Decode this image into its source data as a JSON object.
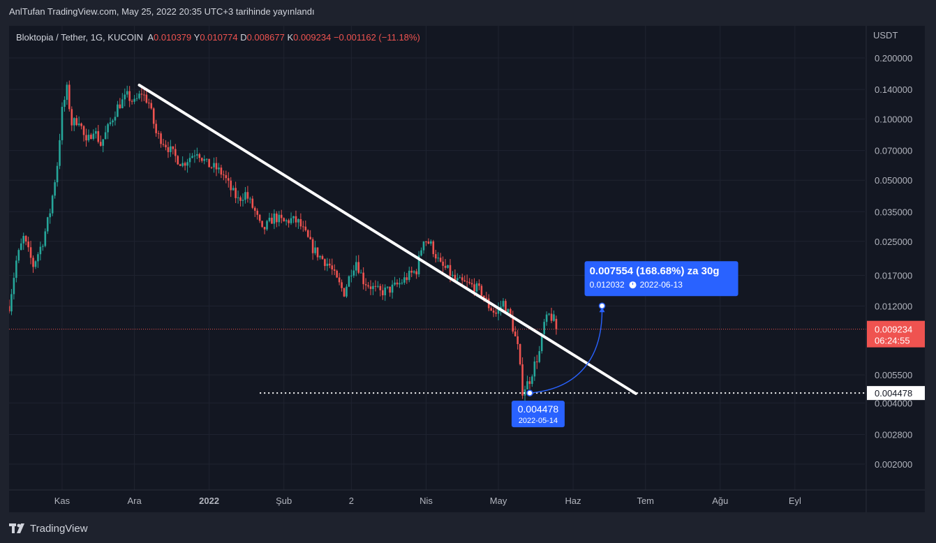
{
  "header": {
    "attribution": "AnlTufan TradingView.com, May 25, 2022 20:35 UTC+3 tarihinde yayınlandı"
  },
  "legend": {
    "symbol": "Bloktopia / Tether, 1G, KUCOIN",
    "open_label": "A",
    "open": "0.010379",
    "high_label": "Y",
    "high": "0.010774",
    "low_label": "D",
    "low": "0.008677",
    "close_label": "K",
    "close": "0.009234",
    "change": "−0.001162 (−11.18%)"
  },
  "footer": {
    "brand": "TradingView"
  },
  "colors": {
    "up": "#26a69a",
    "down": "#ef5350",
    "accent": "#2962ff",
    "background": "#131722",
    "page": "#1e222d"
  },
  "chart_data": {
    "type": "candlestick",
    "scale": "log",
    "currency_label": "USDT",
    "y_ticks": [
      "0.200000",
      "0.140000",
      "0.100000",
      "0.070000",
      "0.050000",
      "0.035000",
      "0.025000",
      "0.017000",
      "0.012000",
      "0.005500",
      "0.004000",
      "0.002800",
      "0.002000"
    ],
    "y_tick_values": [
      0.2,
      0.14,
      0.1,
      0.07,
      0.05,
      0.035,
      0.025,
      0.017,
      0.012,
      0.0055,
      0.004,
      0.0028,
      0.002
    ],
    "x_ticks": [
      "Kas",
      "Ara",
      "2022",
      "Şub",
      "2",
      "Nis",
      "May",
      "Haz",
      "Tem",
      "Ağu",
      "Eyl"
    ],
    "x_tick_dates": [
      "2021-11-01",
      "2021-12-01",
      "2022-01-01",
      "2022-02-01",
      "2022-03-01",
      "2022-04-01",
      "2022-05-01",
      "2022-06-01",
      "2022-07-01",
      "2022-08-01",
      "2022-09-01"
    ],
    "x_range": [
      "2021-10-10",
      "2022-09-30"
    ],
    "first_date": "2021-10-10",
    "close_path": [
      [
        "2021-10-10",
        0.012
      ],
      [
        "2021-10-13",
        0.02
      ],
      [
        "2021-10-16",
        0.026
      ],
      [
        "2021-10-20",
        0.019
      ],
      [
        "2021-10-24",
        0.025
      ],
      [
        "2021-10-27",
        0.035
      ],
      [
        "2021-10-30",
        0.06
      ],
      [
        "2021-11-01",
        0.11
      ],
      [
        "2021-11-03",
        0.14
      ],
      [
        "2021-11-05",
        0.095
      ],
      [
        "2021-11-08",
        0.1
      ],
      [
        "2021-11-11",
        0.075
      ],
      [
        "2021-11-14",
        0.09
      ],
      [
        "2021-11-17",
        0.075
      ],
      [
        "2021-11-20",
        0.09
      ],
      [
        "2021-11-24",
        0.115
      ],
      [
        "2021-11-28",
        0.13
      ],
      [
        "2021-12-01",
        0.12
      ],
      [
        "2021-12-04",
        0.135
      ],
      [
        "2021-12-07",
        0.12
      ],
      [
        "2021-12-10",
        0.085
      ],
      [
        "2021-12-14",
        0.075
      ],
      [
        "2021-12-18",
        0.065
      ],
      [
        "2021-12-21",
        0.06
      ],
      [
        "2021-12-24",
        0.065
      ],
      [
        "2021-12-27",
        0.07
      ],
      [
        "2021-12-31",
        0.06
      ],
      [
        "2022-01-04",
        0.057
      ],
      [
        "2022-01-07",
        0.053
      ],
      [
        "2022-01-10",
        0.045
      ],
      [
        "2022-01-13",
        0.04
      ],
      [
        "2022-01-16",
        0.043
      ],
      [
        "2022-01-20",
        0.035
      ],
      [
        "2022-01-23",
        0.028
      ],
      [
        "2022-01-25",
        0.03
      ],
      [
        "2022-01-28",
        0.033
      ],
      [
        "2022-02-01",
        0.031
      ],
      [
        "2022-02-04",
        0.032
      ],
      [
        "2022-02-07",
        0.031
      ],
      [
        "2022-02-10",
        0.027
      ],
      [
        "2022-02-13",
        0.023
      ],
      [
        "2022-02-16",
        0.021
      ],
      [
        "2022-02-20",
        0.019
      ],
      [
        "2022-02-23",
        0.016
      ],
      [
        "2022-02-26",
        0.014
      ],
      [
        "2022-03-01",
        0.018
      ],
      [
        "2022-03-03",
        0.02
      ],
      [
        "2022-03-06",
        0.016
      ],
      [
        "2022-03-09",
        0.015
      ],
      [
        "2022-03-13",
        0.014
      ],
      [
        "2022-03-17",
        0.0145
      ],
      [
        "2022-03-21",
        0.0155
      ],
      [
        "2022-03-25",
        0.017
      ],
      [
        "2022-03-28",
        0.018
      ],
      [
        "2022-03-31",
        0.026
      ],
      [
        "2022-04-03",
        0.024
      ],
      [
        "2022-04-07",
        0.019
      ],
      [
        "2022-04-10",
        0.018
      ],
      [
        "2022-04-13",
        0.016
      ],
      [
        "2022-04-17",
        0.0155
      ],
      [
        "2022-04-21",
        0.015
      ],
      [
        "2022-04-24",
        0.014
      ],
      [
        "2022-04-27",
        0.012
      ],
      [
        "2022-04-30",
        0.011
      ],
      [
        "2022-05-03",
        0.0125
      ],
      [
        "2022-05-06",
        0.0105
      ],
      [
        "2022-05-09",
        0.0075
      ],
      [
        "2022-05-11",
        0.0046
      ],
      [
        "2022-05-14",
        0.0052
      ],
      [
        "2022-05-16",
        0.0062
      ],
      [
        "2022-05-18",
        0.0071
      ],
      [
        "2022-05-20",
        0.0098
      ],
      [
        "2022-05-22",
        0.0108
      ],
      [
        "2022-05-24",
        0.0103
      ],
      [
        "2022-05-25",
        0.009234
      ]
    ],
    "last_price": "0.009234",
    "countdown": "06:24:55",
    "trendline": {
      "from": [
        "2021-12-03",
        0.147
      ],
      "to": [
        "2022-06-27",
        0.00445
      ]
    },
    "support_line": {
      "from_date": "2022-01-22",
      "price": 0.004478,
      "label": "0.004478"
    },
    "measure": {
      "from": [
        "2022-05-14",
        0.004478
      ],
      "to": [
        "2022-06-13",
        0.012032
      ],
      "title": "0.007554 (168.68%) za 30g",
      "target_price": "0.012032",
      "target_date": "2022-06-13",
      "origin_price": "0.004478",
      "origin_date": "2022-05-14"
    }
  }
}
